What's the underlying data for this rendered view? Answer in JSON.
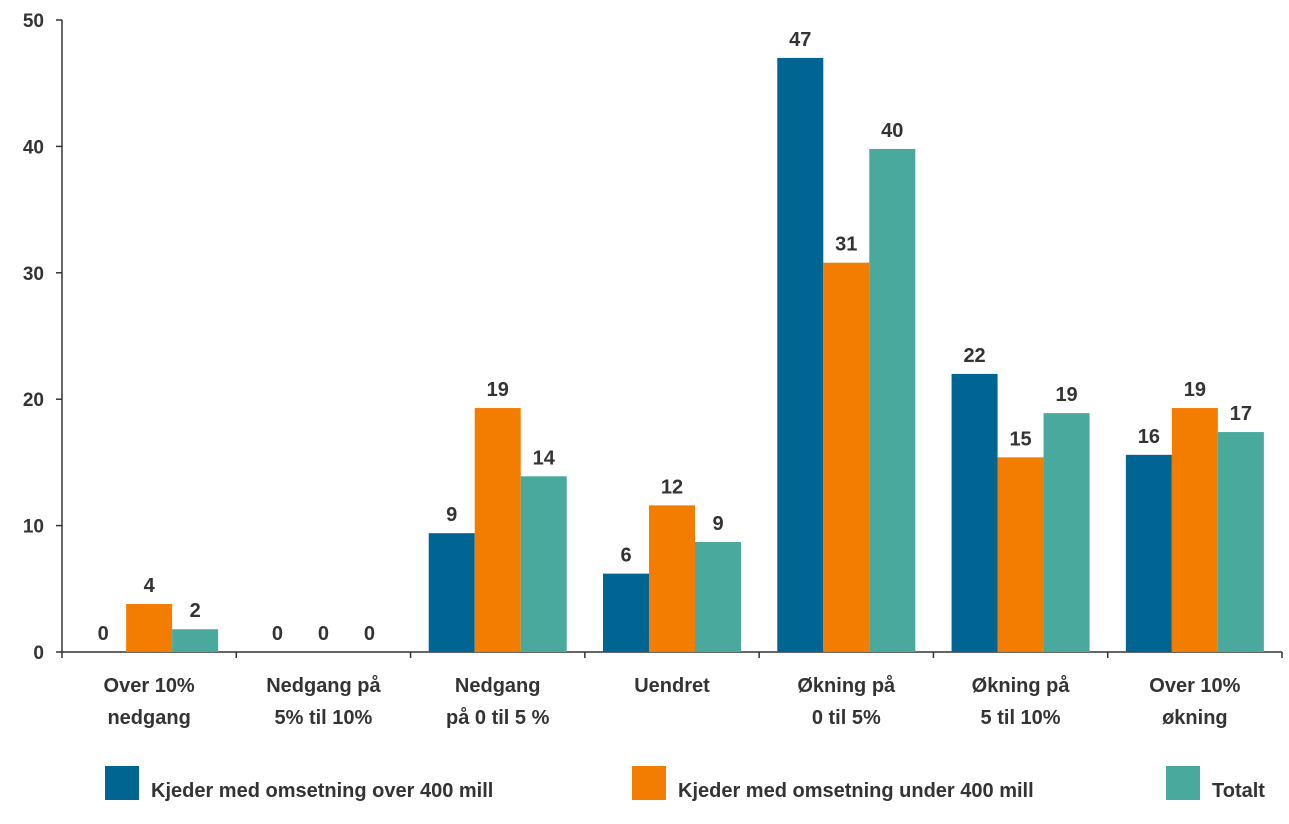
{
  "chart_data": {
    "type": "bar",
    "title": "",
    "xlabel": "",
    "ylabel": "",
    "ylim": [
      0,
      50
    ],
    "yticks": [
      0,
      10,
      20,
      30,
      40,
      50
    ],
    "grid": false,
    "legend_position": "bottom",
    "categories": [
      [
        "Over 10%",
        "nedgang"
      ],
      [
        "Nedgang på",
        "5% til 10%"
      ],
      [
        "Nedgang",
        "på 0 til 5 %"
      ],
      [
        "Uendret"
      ],
      [
        "Økning på",
        "0 til 5%"
      ],
      [
        "Økning på",
        "5 til 10%"
      ],
      [
        "Over 10%",
        "økning"
      ]
    ],
    "series": [
      {
        "name": "Kjeder med omsetning over 400 mill",
        "color": "#006593",
        "values": [
          0,
          0,
          9.4,
          6.2,
          47,
          22,
          15.6
        ],
        "labels": [
          "0",
          "0",
          "9",
          "6",
          "47",
          "22",
          "16"
        ]
      },
      {
        "name": "Kjeder med omsetning under 400 mill",
        "color": "#f27d00",
        "values": [
          3.8,
          0,
          19.3,
          11.6,
          30.8,
          15.4,
          19.3
        ],
        "labels": [
          "4",
          "0",
          "19",
          "12",
          "31",
          "15",
          "19"
        ]
      },
      {
        "name": "Totalt",
        "color": "#48a99c",
        "values": [
          1.8,
          0,
          13.9,
          8.7,
          39.8,
          18.9,
          17.4
        ],
        "labels": [
          "2",
          "0",
          "14",
          "9",
          "40",
          "19",
          "17"
        ]
      }
    ]
  }
}
